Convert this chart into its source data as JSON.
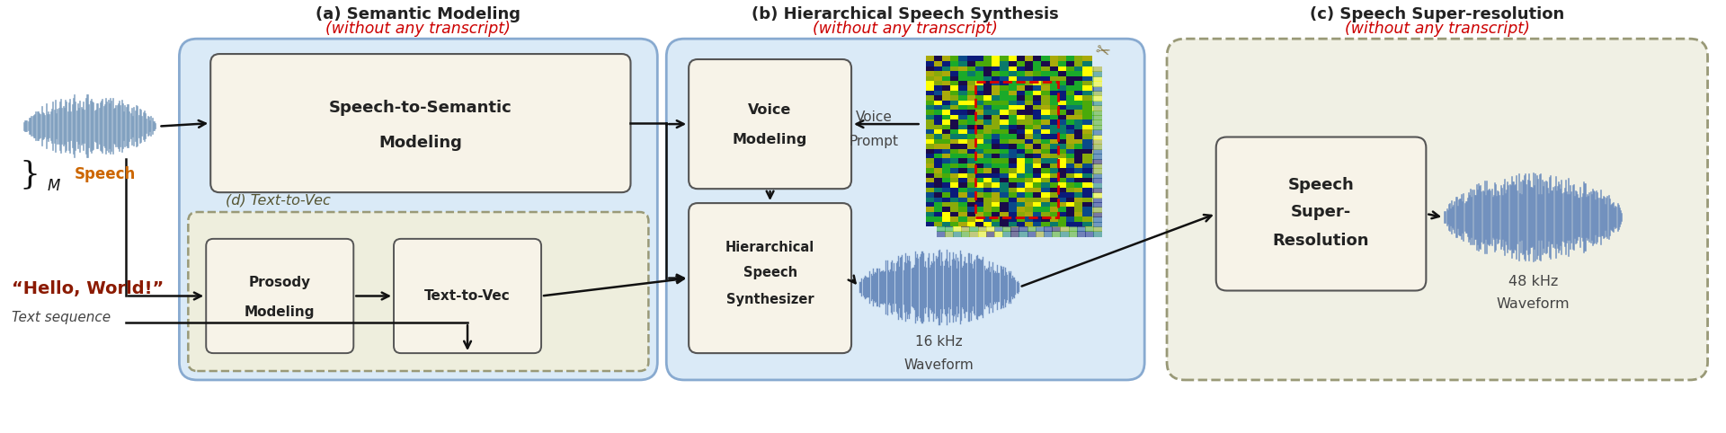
{
  "bg_color": "#ffffff",
  "panel_a_title": "(a) Semantic Modeling",
  "panel_a_subtitle": "(without any transcript)",
  "panel_b_title": "(b) Hierarchical Speech Synthesis",
  "panel_b_subtitle": "(without any transcript)",
  "panel_c_title": "(c) Speech Super-resolution",
  "panel_c_subtitle": "(without any transcript)",
  "panel_d_title": "(d) Text-to-Vec",
  "panel_a_bg": "#daeaf7",
  "panel_b_bg": "#daeaf7",
  "panel_c_bg": "#f0f0e8",
  "panel_d_bg": "#eeeedd",
  "inner_box_bg": "#f7f3e8",
  "inner_box_edge": "#555555",
  "panel_ab_edge": "#88aad0",
  "panel_c_edge": "#999988",
  "arrow_color": "#111111",
  "title_color": "#222222",
  "subtitle_color": "#cc0000",
  "hello_color": "#8b1a00",
  "speech_color": "#cc6600",
  "label_color": "#444444"
}
